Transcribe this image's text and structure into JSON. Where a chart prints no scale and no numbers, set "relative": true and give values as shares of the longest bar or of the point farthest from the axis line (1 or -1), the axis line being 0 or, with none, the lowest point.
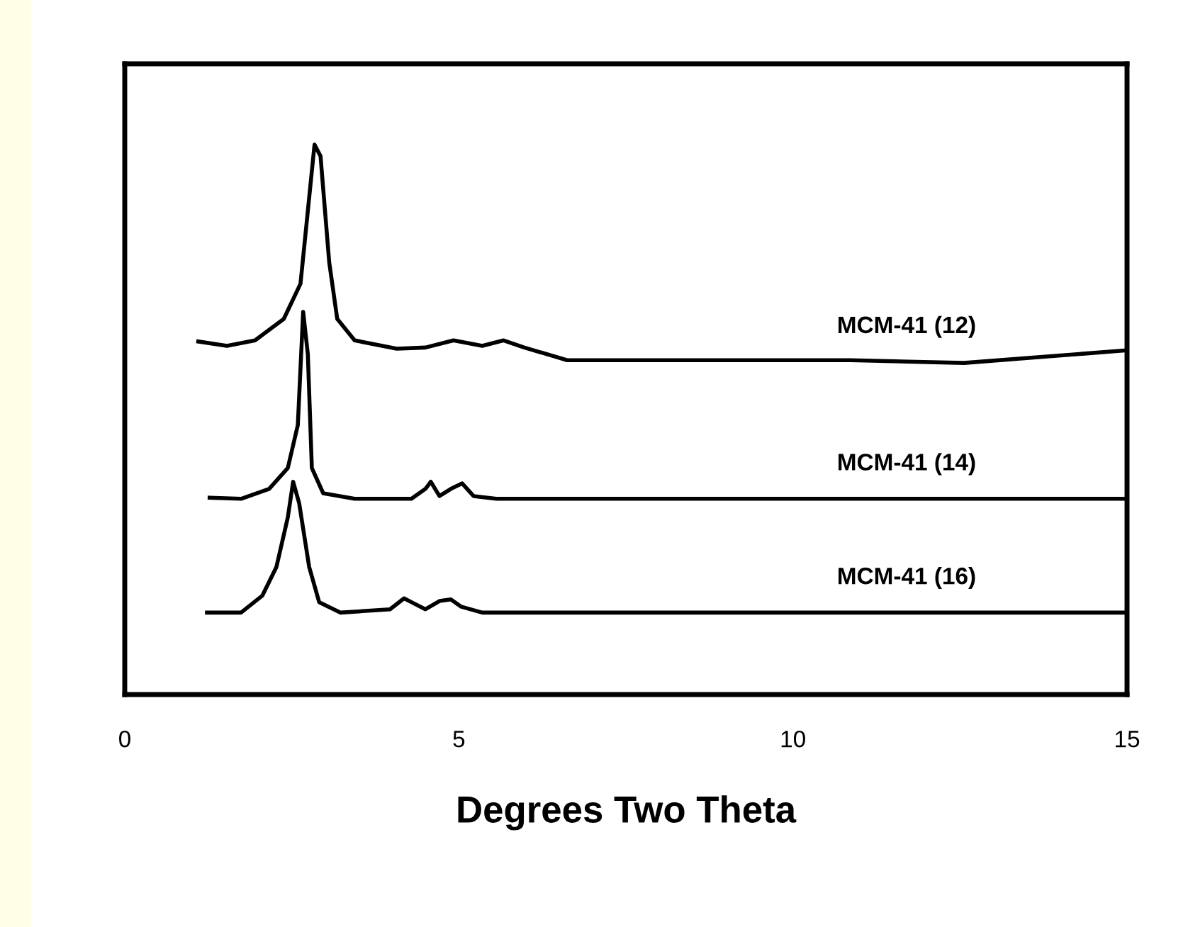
{
  "chart_data": {
    "type": "line",
    "relative": true,
    "xlabel": "Degrees Two Theta",
    "xlim": [
      0,
      15
    ],
    "xticks": [
      0,
      5,
      10,
      15
    ],
    "tick_labels": "x",
    "grid": false,
    "legend": false,
    "marker": "none",
    "line_style": "solid",
    "series": [
      {
        "name": "MCM-41 (12)",
        "color": "#000000",
        "x": [
          1.1,
          1.53,
          1.95,
          2.38,
          2.63,
          2.84,
          2.93,
          3.06,
          3.18,
          3.44,
          4.07,
          4.5,
          4.92,
          5.35,
          5.67,
          5.98,
          6.62,
          7.68,
          10.86,
          12.56,
          15.0
        ],
        "values": [
          0.642,
          0.634,
          0.644,
          0.683,
          0.747,
          1.0,
          0.979,
          0.786,
          0.683,
          0.644,
          0.629,
          0.631,
          0.644,
          0.634,
          0.644,
          0.631,
          0.608,
          0.608,
          0.608,
          0.603,
          0.626
        ]
      },
      {
        "name": "MCM-41 (14)",
        "color": "#000000",
        "x": [
          1.27,
          1.74,
          2.16,
          2.44,
          2.59,
          2.67,
          2.74,
          2.8,
          2.97,
          3.44,
          4.29,
          4.5,
          4.58,
          4.71,
          4.88,
          5.05,
          5.22,
          5.56,
          15.0
        ],
        "values": [
          0.358,
          0.356,
          0.374,
          0.412,
          0.49,
          0.696,
          0.619,
          0.412,
          0.366,
          0.356,
          0.356,
          0.374,
          0.387,
          0.361,
          0.374,
          0.384,
          0.361,
          0.356,
          0.356
        ]
      },
      {
        "name": "MCM-41 (16)",
        "color": "#000000",
        "x": [
          1.23,
          1.74,
          2.06,
          2.27,
          2.44,
          2.52,
          2.61,
          2.76,
          2.91,
          3.23,
          3.97,
          4.18,
          4.29,
          4.5,
          4.71,
          4.88,
          5.03,
          5.35,
          15.0
        ],
        "values": [
          0.149,
          0.149,
          0.18,
          0.232,
          0.322,
          0.387,
          0.348,
          0.232,
          0.168,
          0.149,
          0.155,
          0.175,
          0.168,
          0.155,
          0.17,
          0.173,
          0.16,
          0.149,
          0.149
        ]
      }
    ]
  }
}
